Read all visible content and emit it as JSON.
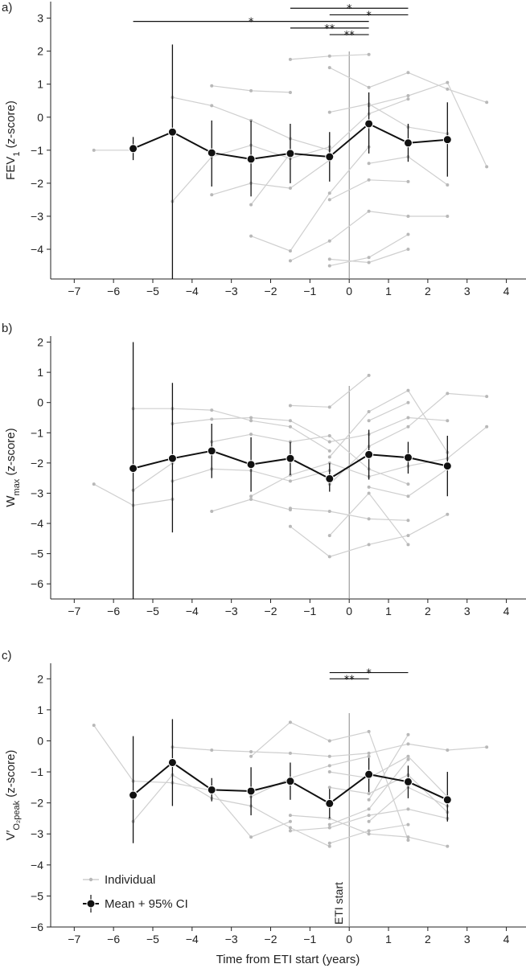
{
  "figure": {
    "xlabel": "Time from ETI start (years)",
    "x_ticks": [
      -7,
      -6,
      -5,
      -4,
      -3,
      -2,
      -1,
      0,
      1,
      2,
      3,
      4
    ],
    "x_range": [
      -7.6,
      4.5
    ],
    "legend": {
      "individual": "Individual",
      "mean": "Mean + 95% CI",
      "placement": "bottom-left of panel c"
    },
    "colors": {
      "individual": "#cfcfcf",
      "individual_point": "#b8b8b8",
      "mean": "#111111",
      "vline": "#888888"
    },
    "eti_label": "ETI start"
  },
  "chart_data": [
    {
      "type": "line",
      "panel_label": "a)",
      "ylabel_main": "FEV",
      "ylabel_sub": "1",
      "ylabel_tail": " (z-score)",
      "ylim": [
        -4.9,
        3.5
      ],
      "y_ticks": [
        -4,
        -3,
        -2,
        -1,
        0,
        1,
        2,
        3
      ],
      "mean": {
        "x": [
          -5.5,
          -4.5,
          -3.5,
          -2.5,
          -1.5,
          -0.5,
          0.5,
          1.5,
          2.5
        ],
        "y": [
          -0.95,
          -0.45,
          -1.08,
          -1.27,
          -1.1,
          -1.2,
          -0.2,
          -0.78,
          -0.68
        ],
        "ci_low": [
          -1.3,
          -4.9,
          -2.1,
          -2.4,
          -2.0,
          -1.95,
          -1.1,
          -1.35,
          -1.8
        ],
        "ci_high": [
          -0.6,
          2.2,
          -0.1,
          -0.1,
          -0.2,
          -0.45,
          0.75,
          -0.2,
          0.45
        ]
      },
      "individuals": [
        {
          "x": [
            -6.5,
            -5.5
          ],
          "y": [
            -1.0,
            -1.0
          ]
        },
        {
          "x": [
            -4.5,
            -3.5,
            -2.5,
            -1.5,
            -0.5,
            0.5,
            1.5
          ],
          "y": [
            0.6,
            0.35,
            -0.1,
            -0.65,
            -1.0,
            0.1,
            0.55
          ]
        },
        {
          "x": [
            -4.5,
            -3.5,
            -2.5,
            -1.5,
            -0.5
          ],
          "y": [
            -2.55,
            -1.2,
            -0.85,
            -1.25,
            -0.9
          ]
        },
        {
          "x": [
            -3.5,
            -2.5,
            -1.5
          ],
          "y": [
            0.95,
            0.8,
            0.75
          ]
        },
        {
          "x": [
            -3.5,
            -2.5,
            -1.5,
            -0.5
          ],
          "y": [
            -2.35,
            -2.0,
            -2.15,
            -1.3
          ]
        },
        {
          "x": [
            -2.5,
            -1.5,
            -0.5,
            0.5
          ],
          "y": [
            -3.6,
            -4.05,
            -2.3,
            -0.9
          ]
        },
        {
          "x": [
            -2.5,
            -1.5
          ],
          "y": [
            -2.65,
            -1.1
          ]
        },
        {
          "x": [
            -1.5,
            -0.5,
            0.5
          ],
          "y": [
            1.75,
            1.85,
            1.9
          ]
        },
        {
          "x": [
            -1.5,
            -0.5,
            0.5,
            1.5,
            2.5
          ],
          "y": [
            -4.35,
            -3.75,
            -2.85,
            -3.0,
            -3.0
          ]
        },
        {
          "x": [
            -0.5,
            0.5,
            1.5,
            2.5,
            3.5
          ],
          "y": [
            1.5,
            0.9,
            1.35,
            0.85,
            0.45
          ]
        },
        {
          "x": [
            -0.5,
            0.5,
            1.5
          ],
          "y": [
            -4.5,
            -4.25,
            -3.55
          ]
        },
        {
          "x": [
            -0.5,
            0.5,
            1.5
          ],
          "y": [
            -4.3,
            -4.4,
            -4.0
          ]
        },
        {
          "x": [
            -0.5,
            0.5,
            1.5,
            2.5
          ],
          "y": [
            0.15,
            0.4,
            -0.3,
            -0.5
          ]
        },
        {
          "x": [
            -0.5,
            0.5,
            1.5
          ],
          "y": [
            -2.5,
            -1.9,
            -1.95
          ]
        },
        {
          "x": [
            0.5,
            1.5,
            2.5,
            3.5
          ],
          "y": [
            0.35,
            0.65,
            1.05,
            -1.5
          ]
        },
        {
          "x": [
            0.5,
            1.5,
            2.5
          ],
          "y": [
            -1.4,
            -1.2,
            -2.05
          ]
        }
      ],
      "significance": [
        {
          "x1": -5.5,
          "x2": 0.5,
          "y": 2.9,
          "label": "*"
        },
        {
          "x1": -1.5,
          "x2": 1.5,
          "y": 3.3,
          "label": "*"
        },
        {
          "x1": -0.5,
          "x2": 1.5,
          "y": 3.1,
          "label": "*"
        },
        {
          "x1": -1.5,
          "x2": 0.5,
          "y": 2.7,
          "label": "**"
        },
        {
          "x1": -0.5,
          "x2": 0.5,
          "y": 2.5,
          "label": "**"
        }
      ]
    },
    {
      "type": "line",
      "panel_label": "b)",
      "ylabel_main": "W",
      "ylabel_sub": "max",
      "ylabel_tail": " (z-score)",
      "ylim": [
        -6.5,
        2.2
      ],
      "y_ticks": [
        -6,
        -5,
        -4,
        -3,
        -2,
        -1,
        0,
        1,
        2
      ],
      "mean": {
        "x": [
          -5.5,
          -4.5,
          -3.5,
          -2.5,
          -1.5,
          -0.5,
          0.5,
          1.5,
          2.5
        ],
        "y": [
          -2.18,
          -1.85,
          -1.6,
          -2.05,
          -1.85,
          -2.52,
          -1.72,
          -1.82,
          -2.1
        ],
        "ci_low": [
          -6.5,
          -4.3,
          -2.5,
          -2.95,
          -2.4,
          -2.95,
          -2.55,
          -2.35,
          -3.1
        ],
        "ci_high": [
          2.0,
          0.65,
          -0.7,
          -1.15,
          -1.3,
          -2.0,
          -0.9,
          -1.3,
          -1.1
        ]
      },
      "individuals": [
        {
          "x": [
            -6.5,
            -5.5,
            -4.5
          ],
          "y": [
            -2.7,
            -3.4,
            -3.2
          ]
        },
        {
          "x": [
            -5.5,
            -4.5,
            -3.5,
            -2.5,
            -1.5,
            -0.5
          ],
          "y": [
            -0.2,
            -0.2,
            -0.25,
            -0.6,
            -0.8,
            -1.6
          ]
        },
        {
          "x": [
            -5.5,
            -4.5
          ],
          "y": [
            -2.9,
            -2.0
          ]
        },
        {
          "x": [
            -4.5,
            -3.5,
            -2.5,
            -1.5,
            -0.5,
            0.5,
            1.5,
            2.5
          ],
          "y": [
            -0.7,
            -0.55,
            -0.5,
            -0.6,
            -1.3,
            -1.05,
            -0.5,
            -0.6
          ]
        },
        {
          "x": [
            -4.5,
            -3.5,
            -2.5,
            -1.5,
            -0.5
          ],
          "y": [
            -2.6,
            -2.2,
            -2.25,
            -2.6,
            -2.25
          ]
        },
        {
          "x": [
            -3.5,
            -2.5,
            -1.5
          ],
          "y": [
            -3.6,
            -3.2,
            -3.55
          ]
        },
        {
          "x": [
            -3.5,
            -2.5,
            -1.5,
            -0.5,
            0.5,
            1.5
          ],
          "y": [
            -1.3,
            -1.05,
            -1.3,
            -1.1,
            -2.2,
            -2.7
          ]
        },
        {
          "x": [
            -2.5,
            -1.5,
            -0.5,
            0.5,
            1.5,
            2.5,
            3.5
          ],
          "y": [
            -3.1,
            -2.4,
            -2.0,
            -2.45,
            -2.1,
            -1.85,
            -0.8
          ]
        },
        {
          "x": [
            -1.5,
            -0.5,
            0.5
          ],
          "y": [
            -0.1,
            -0.15,
            0.9
          ]
        },
        {
          "x": [
            -1.5,
            -0.5,
            0.5,
            1.5,
            2.5
          ],
          "y": [
            -4.1,
            -5.1,
            -4.7,
            -4.4,
            -3.7
          ]
        },
        {
          "x": [
            -1.5,
            -0.5,
            0.5,
            1.5
          ],
          "y": [
            -3.5,
            -3.6,
            -3.85,
            -3.9
          ]
        },
        {
          "x": [
            -0.5,
            0.5,
            1.5,
            2.5,
            3.5
          ],
          "y": [
            -2.7,
            -1.45,
            -0.8,
            0.3,
            0.2
          ]
        },
        {
          "x": [
            -0.5,
            0.5,
            1.5
          ],
          "y": [
            -4.4,
            -3.0,
            -4.7
          ]
        },
        {
          "x": [
            -0.5,
            0.5,
            1.5,
            2.5
          ],
          "y": [
            -1.8,
            -0.3,
            0.4,
            -1.65
          ]
        },
        {
          "x": [
            0.5,
            1.5,
            2.5
          ],
          "y": [
            -2.8,
            -3.1,
            -2.2
          ]
        },
        {
          "x": [
            0.5,
            1.5
          ],
          "y": [
            -0.6,
            0.0
          ]
        }
      ],
      "significance": []
    },
    {
      "type": "line",
      "panel_label": "c)",
      "ylabel_main": "V′",
      "ylabel_sub": "O₂peak",
      "ylabel_tail": " (z-score)",
      "ylim": [
        -6.0,
        2.5
      ],
      "y_ticks": [
        -6,
        -5,
        -4,
        -3,
        -2,
        -1,
        0,
        1,
        2
      ],
      "mean": {
        "x": [
          -5.5,
          -4.5,
          -3.5,
          -2.5,
          -1.5,
          -0.5,
          0.5,
          1.5,
          2.5
        ],
        "y": [
          -1.75,
          -0.7,
          -1.58,
          -1.62,
          -1.3,
          -2.02,
          -1.08,
          -1.32,
          -1.9
        ],
        "ci_low": [
          -3.3,
          -2.1,
          -1.95,
          -2.4,
          -1.9,
          -2.5,
          -1.65,
          -1.85,
          -2.6
        ],
        "ci_high": [
          0.15,
          0.7,
          -1.2,
          -0.85,
          -0.7,
          -1.55,
          -0.55,
          -0.8,
          -1.0
        ]
      },
      "individuals": [
        {
          "x": [
            -6.5,
            -5.5,
            -4.5,
            -3.5
          ],
          "y": [
            0.5,
            -1.3,
            -1.35,
            -1.6
          ]
        },
        {
          "x": [
            -5.5,
            -4.5,
            -3.5,
            -2.5,
            -1.5,
            -0.5
          ],
          "y": [
            -2.6,
            -1.1,
            -1.85,
            -2.1,
            -2.8,
            -3.4
          ]
        },
        {
          "x": [
            -4.5,
            -3.5,
            -2.5,
            -1.5,
            -0.5,
            0.5,
            1.5,
            2.5,
            3.5
          ],
          "y": [
            -0.2,
            -0.3,
            -0.35,
            -0.4,
            -0.5,
            -0.4,
            -0.1,
            -0.3,
            -0.2
          ]
        },
        {
          "x": [
            -3.5,
            -2.5,
            -1.5
          ],
          "y": [
            -1.6,
            -3.1,
            -2.6
          ]
        },
        {
          "x": [
            -2.5,
            -1.5,
            -0.5,
            0.5,
            1.5
          ],
          "y": [
            -0.5,
            0.6,
            0.0,
            0.3,
            -3.2
          ]
        },
        {
          "x": [
            -2.5,
            -1.5,
            -0.5,
            0.5
          ],
          "y": [
            -1.8,
            -1.2,
            -0.8,
            -0.5
          ]
        },
        {
          "x": [
            -1.5,
            -0.5,
            0.5,
            1.5,
            2.5
          ],
          "y": [
            -2.9,
            -2.8,
            -2.4,
            -2.2,
            -2.5
          ]
        },
        {
          "x": [
            -1.5,
            -0.5,
            0.5,
            1.5,
            2.5
          ],
          "y": [
            -2.4,
            -2.5,
            -3.0,
            -3.1,
            -3.4
          ]
        },
        {
          "x": [
            -0.5,
            0.5,
            1.5,
            2.5
          ],
          "y": [
            -1.5,
            -1.7,
            -1.1,
            -2.3
          ]
        },
        {
          "x": [
            -0.5,
            0.5,
            1.5
          ],
          "y": [
            -3.3,
            -2.9,
            -2.7
          ]
        },
        {
          "x": [
            -0.5,
            0.5,
            1.5
          ],
          "y": [
            -2.7,
            -2.2,
            -0.6
          ]
        },
        {
          "x": [
            -0.5,
            0.5,
            1.5,
            2.5
          ],
          "y": [
            -1.0,
            -1.2,
            -0.5,
            -1.8
          ]
        },
        {
          "x": [
            0.5,
            1.5,
            2.5
          ],
          "y": [
            -2.6,
            -1.5,
            -2.1
          ]
        },
        {
          "x": [
            0.5,
            1.5
          ],
          "y": [
            -1.9,
            0.2
          ]
        }
      ],
      "significance": [
        {
          "x1": -0.5,
          "x2": 1.5,
          "y": 2.2,
          "label": "*"
        },
        {
          "x1": -0.5,
          "x2": 0.5,
          "y": 2.0,
          "label": "**"
        }
      ]
    }
  ]
}
